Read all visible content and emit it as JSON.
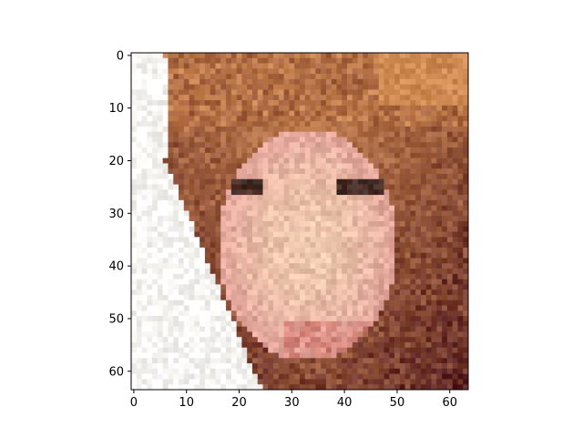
{
  "chart_data": {
    "type": "heatmap",
    "subtype": "imshow-rgb",
    "title": "",
    "xlabel": "",
    "ylabel": "",
    "image_shape": [
      64,
      64,
      3
    ],
    "xlim": [
      -0.5,
      63.5
    ],
    "ylim": [
      63.5,
      -0.5
    ],
    "origin": "upper",
    "grid": false,
    "x_ticks": [
      0,
      10,
      20,
      30,
      40,
      50,
      60
    ],
    "x_tick_labels": [
      "0",
      "10",
      "20",
      "30",
      "40",
      "50",
      "60"
    ],
    "y_ticks": [
      0,
      10,
      20,
      30,
      40,
      50,
      60
    ],
    "y_tick_labels": [
      "0",
      "10",
      "20",
      "30",
      "40",
      "50",
      "60"
    ],
    "palette": {
      "white": "#f8f6f2",
      "hair_light": "#c8844f",
      "hair_dark": "#7a3a2a",
      "skin": "#efcdb0",
      "skin_pink": "#e3a59b",
      "shadow": "#5a2222",
      "eye": "#3a2a25",
      "lip": "#d07a70",
      "spine": "#000000"
    }
  }
}
